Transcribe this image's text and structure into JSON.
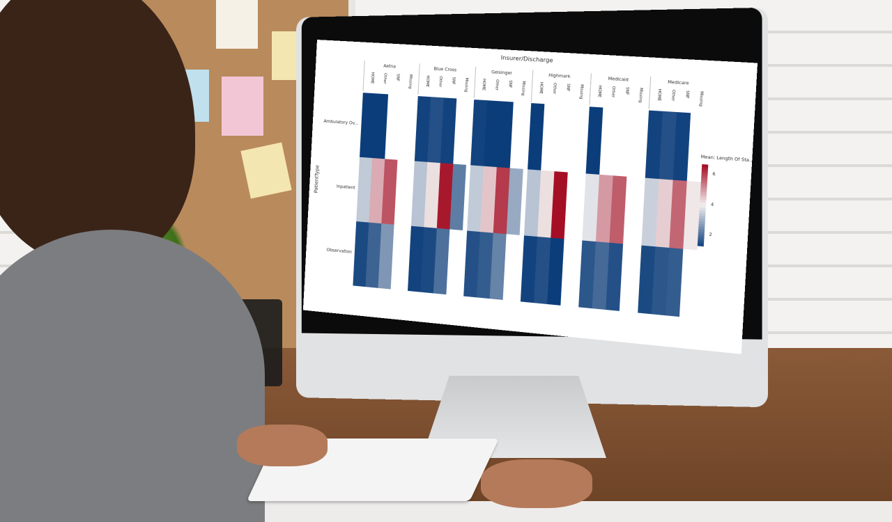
{
  "chart_data": {
    "type": "heatmap",
    "title": "Insurer/Discharge",
    "ylabel": "PatientType",
    "legend": {
      "title": "Mean: Length Of Sta...",
      "ticks": [
        2,
        4,
        6
      ],
      "placement": "right"
    },
    "colors": {
      "low": "#0b3d7a",
      "mid": "#f2f0f0",
      "high": "#a50f25"
    },
    "color_range": [
      1.2,
      6.6
    ],
    "groups": [
      "Aetna",
      "Blue Cross",
      "Geisinger",
      "Highmark",
      "Medicaid",
      "Medicare"
    ],
    "subcategories": [
      "HOME",
      "Other",
      "SNF",
      "Missing"
    ],
    "rows": [
      "Ambulatory Ov...",
      "Inpatient",
      "Observation"
    ],
    "values": {
      "Ambulatory Ov...": [
        [
          1.2,
          1.2,
          null,
          null
        ],
        [
          1.3,
          1.5,
          1.3,
          null
        ],
        [
          1.3,
          1.2,
          1.2,
          null
        ],
        [
          1.2,
          null,
          null,
          null
        ],
        [
          1.2,
          null,
          null,
          null
        ],
        [
          1.3,
          1.5,
          1.3,
          null
        ]
      ],
      "Inpatient": [
        [
          3.4,
          4.8,
          5.8,
          null
        ],
        [
          3.3,
          4.2,
          6.5,
          2.2
        ],
        [
          3.4,
          4.5,
          6.1,
          2.9
        ],
        [
          3.3,
          4.2,
          6.6,
          null
        ],
        [
          3.8,
          5.0,
          5.7,
          null
        ],
        [
          3.5,
          4.4,
          5.6,
          4.1
        ]
      ],
      "Observation": [
        [
          1.4,
          1.8,
          2.6,
          null
        ],
        [
          1.3,
          1.4,
          2.0,
          null
        ],
        [
          1.5,
          1.7,
          2.3,
          null
        ],
        [
          1.3,
          1.5,
          1.2,
          null
        ],
        [
          1.6,
          1.9,
          1.5,
          null
        ],
        [
          1.4,
          1.6,
          1.7,
          null
        ]
      ]
    }
  }
}
